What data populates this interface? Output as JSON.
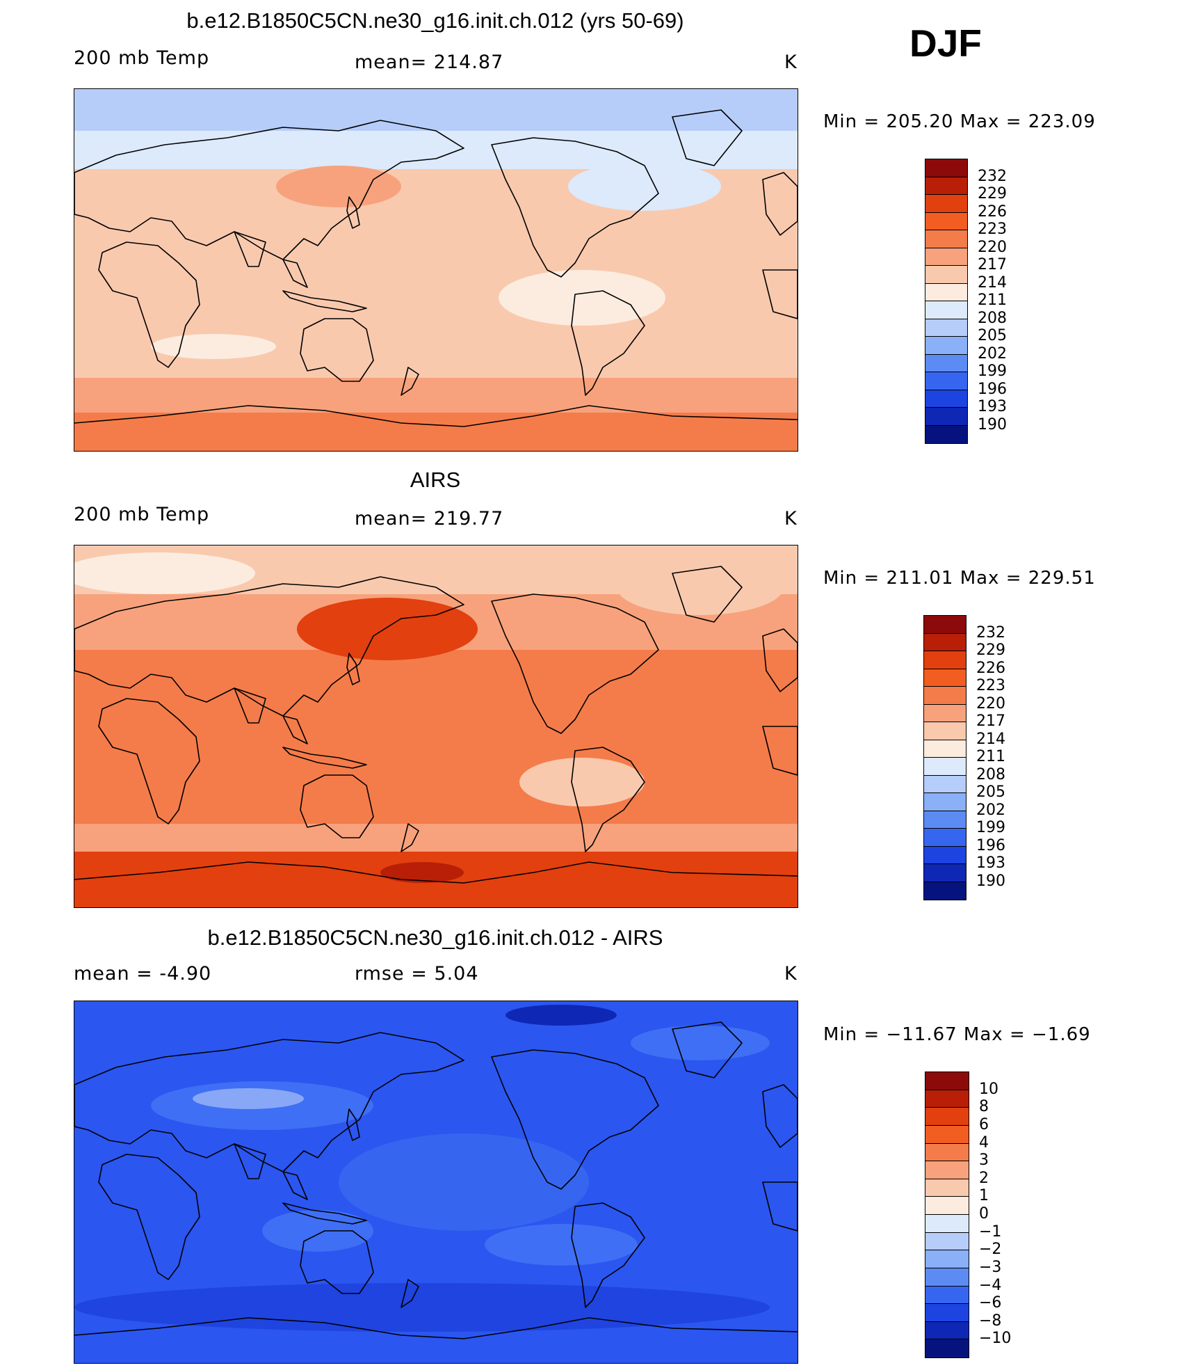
{
  "season": "DJF",
  "panels": [
    {
      "title": "b.e12.B1850C5CN.ne30_g16.init.ch.012 (yrs 50-69)",
      "left_label": "200 mb Temp",
      "center_label": "mean=  214.87",
      "units": "K",
      "minmax": "Min  =  205.20  Max  =  223.09",
      "palette": [
        "#fcece0",
        "#f9c9ae",
        "#f7a27c",
        "#f47c4a"
      ]
    },
    {
      "title": "AIRS",
      "left_label": "200 mb Temp",
      "center_label": "mean=  219.77",
      "units": "K",
      "minmax": "Min  =  211.01  Max  =  229.51",
      "palette": [
        "#f9c9ae",
        "#f7a27c",
        "#f47c4a",
        "#e2400f"
      ]
    },
    {
      "title": "b.e12.B1850C5CN.ne30_g16.init.ch.012 - AIRS",
      "left_label": "mean  =    -4.90",
      "center_label": "rmse  =     5.04",
      "units": "K",
      "minmax": "Min  =  −11.67  Max  =    −1.69",
      "palette": [
        "#2b56f0",
        "#3f6ff4",
        "#1f44e0",
        "#88a8f7"
      ]
    }
  ],
  "colorbars": [
    {
      "labels": [
        "232",
        "229",
        "226",
        "223",
        "220",
        "217",
        "214",
        "211",
        "208",
        "205",
        "202",
        "199",
        "196",
        "193",
        "190"
      ]
    },
    {
      "labels": [
        "232",
        "229",
        "226",
        "223",
        "220",
        "217",
        "214",
        "211",
        "208",
        "205",
        "202",
        "199",
        "196",
        "193",
        "190"
      ]
    },
    {
      "labels": [
        "10",
        "8",
        "6",
        "4",
        "3",
        "2",
        "1",
        "0",
        "−1",
        "−2",
        "−3",
        "−4",
        "−6",
        "−8",
        "−10"
      ]
    }
  ],
  "colorbar_colors": [
    "#8c0a0a",
    "#b81f06",
    "#e2400f",
    "#f25d21",
    "#f47c4a",
    "#f7a27c",
    "#f9c9ae",
    "#fcece0",
    "#dceafb",
    "#b6cdfa",
    "#8ab0f7",
    "#5c8cf3",
    "#3666f0",
    "#1d44e0",
    "#0f27b5",
    "#06137e"
  ]
}
